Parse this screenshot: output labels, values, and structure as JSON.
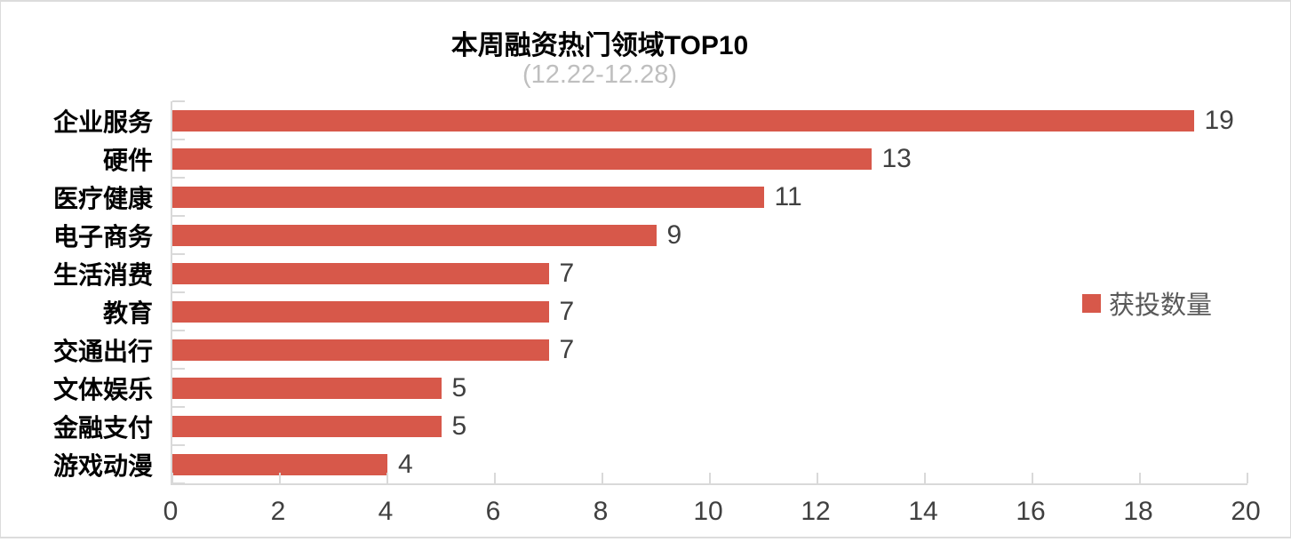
{
  "header": {
    "title": "本周融资热门领域TOP10",
    "subtitle": "(12.22-12.28)"
  },
  "legend": {
    "label": "获投数量"
  },
  "colors": {
    "bar": "#D7584A",
    "axis": "#D9D9D9",
    "value_label": "#404040",
    "tick_label": "#404040",
    "category_label": "#000000",
    "subtitle": "#BFBFBF",
    "legend_text": "#595959",
    "background": "#FFFFFF"
  },
  "chart_data": {
    "type": "bar",
    "orientation": "horizontal",
    "title": "本周融资热门领域TOP10",
    "subtitle": "(12.22-12.28)",
    "categories": [
      "企业服务",
      "硬件",
      "医疗健康",
      "电子商务",
      "生活消费",
      "教育",
      "交通出行",
      "文体娱乐",
      "金融支付",
      "游戏动漫"
    ],
    "series": [
      {
        "name": "获投数量",
        "values": [
          19,
          13,
          11,
          9,
          7,
          7,
          7,
          5,
          5,
          4
        ]
      }
    ],
    "value_labels": [
      19,
      13,
      11,
      9,
      7,
      7,
      7,
      5,
      5,
      4
    ],
    "xlim": [
      0,
      20
    ],
    "x_ticks": [
      0,
      2,
      4,
      6,
      8,
      10,
      12,
      14,
      16,
      18,
      20
    ],
    "grid": false,
    "legend_position": "right-middle"
  }
}
